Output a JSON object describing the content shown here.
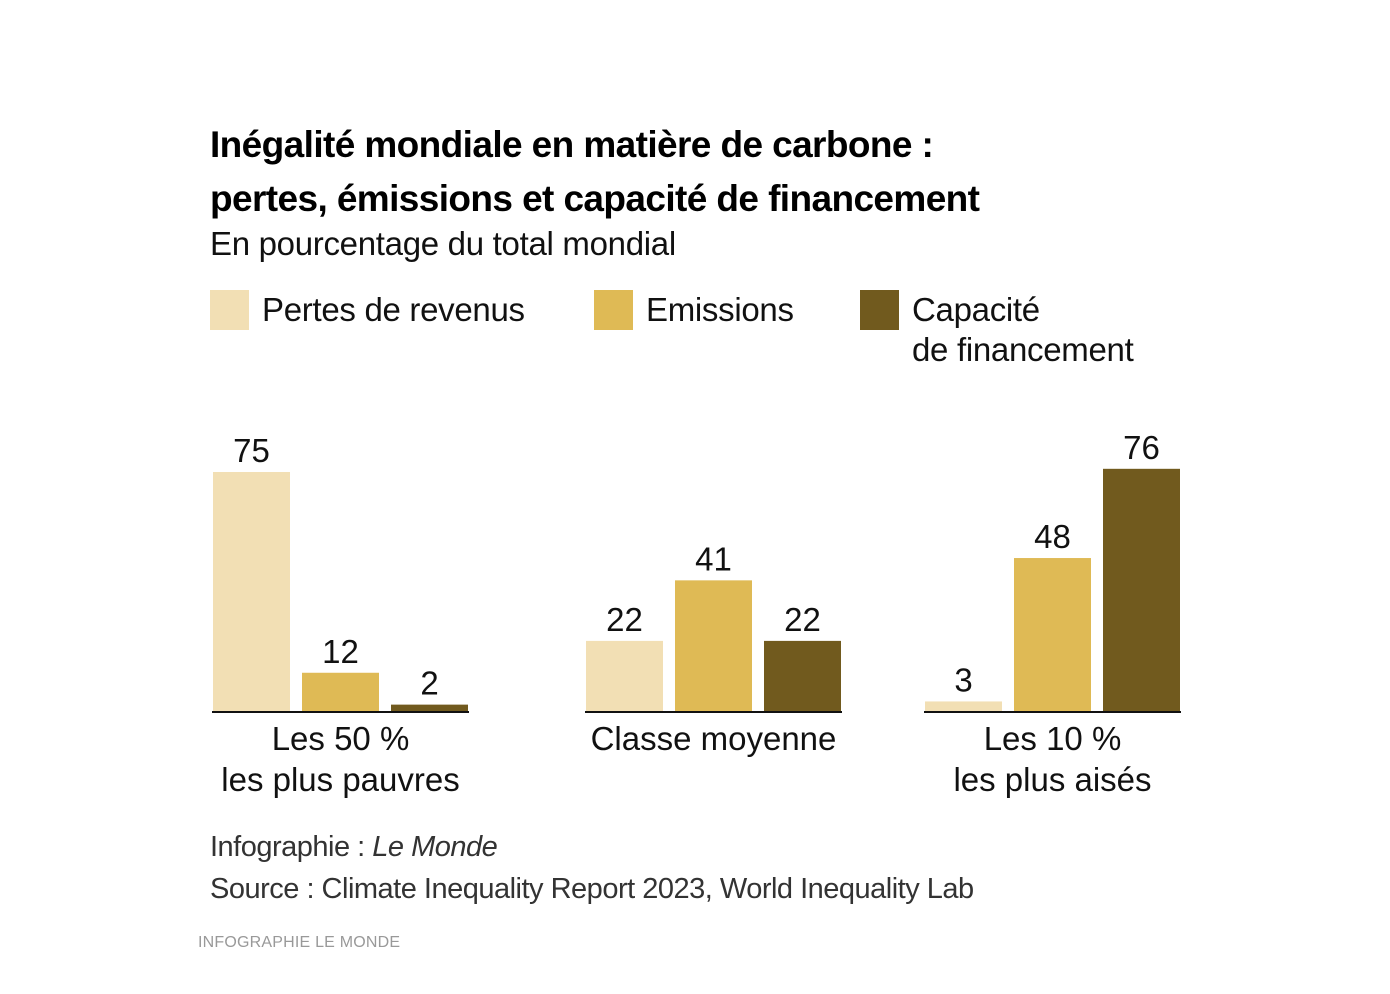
{
  "chart_data": {
    "type": "bar",
    "title": "Inégalité mondiale en matière de carbone : pertes, émissions et capacité de financement",
    "title_lines": [
      "Inégalité mondiale en matière de carbone :",
      "pertes, émissions et capacité de financement"
    ],
    "subtitle": "En pourcentage du total mondial",
    "xlabel": "",
    "ylabel": "",
    "unit": "%",
    "ylim": [
      0,
      80
    ],
    "grid": false,
    "legend_position": "top",
    "categories": [
      "Les 50 % les plus pauvres",
      "Classe moyenne",
      "Les 10 % les plus aisés"
    ],
    "category_label_lines": [
      [
        "Les 50 %",
        "les plus pauvres"
      ],
      [
        "Classe moyenne"
      ],
      [
        "Les 10 %",
        "les plus aisés"
      ]
    ],
    "series": [
      {
        "name": "Pertes de revenus",
        "legend_lines": [
          "Pertes de revenus"
        ],
        "color": "#f2dfb4",
        "values": [
          75,
          22,
          3
        ]
      },
      {
        "name": "Emissions",
        "legend_lines": [
          "Emissions"
        ],
        "color": "#dfba55",
        "values": [
          12,
          41,
          48
        ]
      },
      {
        "name": "Capacité de financement",
        "legend_lines": [
          "Capacité",
          "de financement"
        ],
        "color": "#715a1e",
        "values": [
          2,
          22,
          76
        ]
      }
    ],
    "baseline_color": "#111111"
  },
  "credits": {
    "infographie_prefix": "Infographie : ",
    "infographie_name": "Le Monde",
    "source": "Source : Climate Inequality Report 2023, World Inequality Lab"
  },
  "footer": "INFOGRAPHIE LE MONDE"
}
